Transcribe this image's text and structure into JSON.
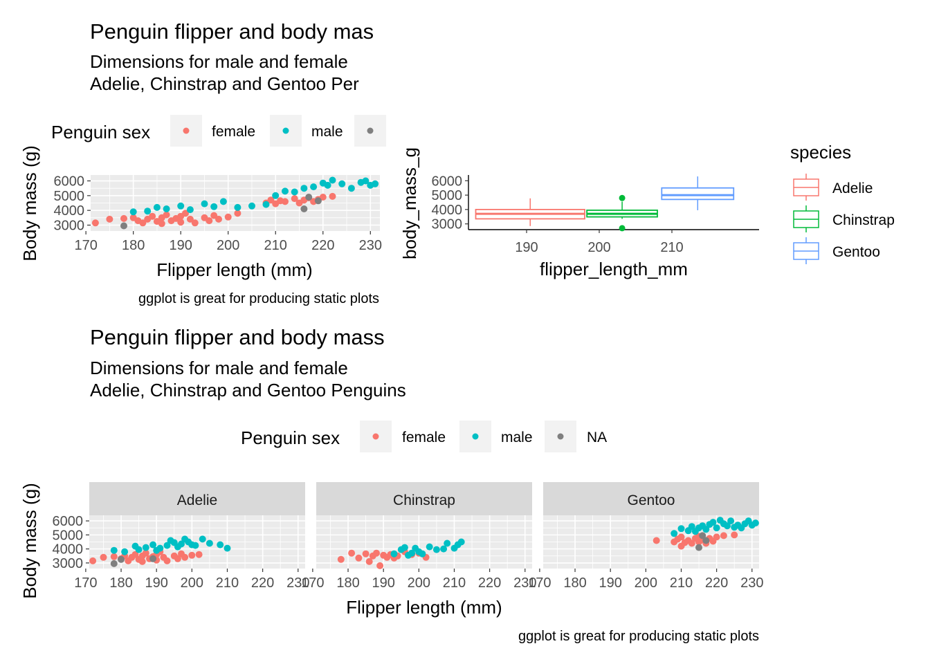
{
  "colors": {
    "female": "#F8766D",
    "male": "#00BFC4",
    "na": "#7F7F7F",
    "Adelie": "#F8766D",
    "Chinstrap": "#00BA38",
    "Gentoo": "#619CFF",
    "panel_bg": "#EBEBEB",
    "grid": "#FFFFFF",
    "strip_bg": "#D9D9D9"
  },
  "top_left": {
    "title": "Penguin flipper and body mas",
    "subtitle_line1": "Dimensions for male and female",
    "subtitle_line2": "Adelie, Chinstrap and Gentoo Per",
    "caption": "ggplot is great for producing static plots",
    "legend_title": "Penguin sex",
    "legend_labels": [
      "female",
      "male"
    ]
  },
  "top_right": {
    "legend_title": "species",
    "legend_labels": [
      "Adelie",
      "Chinstrap",
      "Gentoo"
    ]
  },
  "bottom": {
    "title": "Penguin flipper and body mass",
    "subtitle_line1": "Dimensions for male and female",
    "subtitle_line2": "Adelie, Chinstrap and Gentoo Penguins",
    "caption": "ggplot is great for producing static plots",
    "legend_title": "Penguin sex",
    "legend_labels": [
      "female",
      "male",
      "NA"
    ]
  },
  "chart_data": [
    {
      "type": "scatter",
      "xlabel": "Flipper length (mm)",
      "ylabel": "Body mass (g)",
      "xlim": [
        171,
        232
      ],
      "ylim": [
        2600,
        6400
      ],
      "xticks": [
        "170",
        "180",
        "190",
        "200",
        "210",
        "220",
        "230"
      ],
      "yticks": [
        "3000",
        "4000",
        "5000",
        "6000"
      ],
      "series": [
        {
          "name": "female",
          "points": [
            [
              172,
              3150
            ],
            [
              175,
              3400
            ],
            [
              178,
              3450
            ],
            [
              180,
              3500
            ],
            [
              181,
              3300
            ],
            [
              182,
              3150
            ],
            [
              183,
              3400
            ],
            [
              184,
              3600
            ],
            [
              185,
              3250
            ],
            [
              186,
              3100
            ],
            [
              186,
              3500
            ],
            [
              187,
              3700
            ],
            [
              188,
              3300
            ],
            [
              189,
              3450
            ],
            [
              190,
              3200
            ],
            [
              190,
              3600
            ],
            [
              191,
              3800
            ],
            [
              192,
              3400
            ],
            [
              193,
              3150
            ],
            [
              195,
              3500
            ],
            [
              196,
              3300
            ],
            [
              197,
              3650
            ],
            [
              198,
              3400
            ],
            [
              200,
              3550
            ],
            [
              202,
              3800
            ],
            [
              208,
              4500
            ],
            [
              209,
              4700
            ],
            [
              210,
              4450
            ],
            [
              211,
              4650
            ],
            [
              212,
              4600
            ],
            [
              214,
              4800
            ],
            [
              215,
              4500
            ],
            [
              216,
              4700
            ],
            [
              217,
              4850
            ],
            [
              218,
              4600
            ],
            [
              219,
              4750
            ],
            [
              220,
              4900
            ],
            [
              222,
              4950
            ]
          ]
        },
        {
          "name": "male",
          "points": [
            [
              180,
              3900
            ],
            [
              183,
              3950
            ],
            [
              185,
              4200
            ],
            [
              187,
              4100
            ],
            [
              190,
              4300
            ],
            [
              192,
              4050
            ],
            [
              195,
              4450
            ],
            [
              197,
              4250
            ],
            [
              199,
              4600
            ],
            [
              202,
              4200
            ],
            [
              205,
              4300
            ],
            [
              208,
              4400
            ],
            [
              210,
              5000
            ],
            [
              212,
              5300
            ],
            [
              214,
              5250
            ],
            [
              216,
              5500
            ],
            [
              218,
              5600
            ],
            [
              220,
              5850
            ],
            [
              221,
              5700
            ],
            [
              222,
              6050
            ],
            [
              224,
              5800
            ],
            [
              226,
              5500
            ],
            [
              228,
              5900
            ],
            [
              229,
              6000
            ],
            [
              230,
              5700
            ],
            [
              231,
              5800
            ]
          ]
        },
        {
          "name": "NA",
          "points": [
            [
              178,
              2950
            ],
            [
              216,
              4100
            ],
            [
              217,
              4900
            ],
            [
              219,
              4650
            ]
          ]
        }
      ]
    },
    {
      "type": "box",
      "xlabel": "flipper_length_mm",
      "ylabel": "body_mass_g",
      "xlim": [
        182,
        222
      ],
      "ylim": [
        2600,
        6400
      ],
      "xticks": [
        "190",
        "200",
        "210"
      ],
      "yticks": [
        "3000",
        "4000",
        "5000",
        "6000"
      ],
      "boxes": [
        {
          "name": "Adelie",
          "x_from": 183,
          "x_to": 198,
          "whisker_low": 2850,
          "q1": 3350,
          "median": 3700,
          "q3": 4000,
          "whisker_high": 4775,
          "outliers": []
        },
        {
          "name": "Chinstrap",
          "x_from": 198.3,
          "x_to": 208,
          "whisker_low": 3350,
          "q1": 3487,
          "median": 3700,
          "q3": 3950,
          "whisker_high": 4550,
          "outliers": [
            2700,
            4800
          ]
        },
        {
          "name": "Gentoo",
          "x_from": 208.6,
          "x_to": 218.5,
          "whisker_low": 3950,
          "q1": 4700,
          "median": 5000,
          "q3": 5500,
          "whisker_high": 6300,
          "outliers": []
        }
      ]
    },
    {
      "type": "scatter",
      "facets": [
        "Adelie",
        "Chinstrap",
        "Gentoo"
      ],
      "xlabel": "Flipper length (mm)",
      "ylabel": "Body mass (g)",
      "xlim": [
        171,
        232
      ],
      "ylim": [
        2600,
        6400
      ],
      "xticks": [
        "170",
        "180",
        "190",
        "200",
        "210",
        "220",
        "230"
      ],
      "yticks": [
        "3000",
        "4000",
        "5000",
        "6000"
      ],
      "panels": [
        {
          "facet": "Adelie",
          "series": [
            {
              "name": "female",
              "points": [
                [
                  172,
                  3150
                ],
                [
                  175,
                  3400
                ],
                [
                  178,
                  3450
                ],
                [
                  180,
                  3300
                ],
                [
                  181,
                  3500
                ],
                [
                  182,
                  3150
                ],
                [
                  183,
                  3400
                ],
                [
                  184,
                  3600
                ],
                [
                  185,
                  3250
                ],
                [
                  186,
                  3100
                ],
                [
                  186,
                  3500
                ],
                [
                  187,
                  3700
                ],
                [
                  188,
                  3300
                ],
                [
                  189,
                  3450
                ],
                [
                  190,
                  3200
                ],
                [
                  190,
                  3600
                ],
                [
                  191,
                  3800
                ],
                [
                  192,
                  3400
                ],
                [
                  193,
                  3150
                ],
                [
                  195,
                  3500
                ],
                [
                  196,
                  3300
                ],
                [
                  197,
                  3650
                ],
                [
                  198,
                  3400
                ],
                [
                  200,
                  3550
                ],
                [
                  202,
                  3600
                ]
              ]
            },
            {
              "name": "male",
              "points": [
                [
                  178,
                  3900
                ],
                [
                  181,
                  3800
                ],
                [
                  184,
                  4200
                ],
                [
                  185,
                  3950
                ],
                [
                  187,
                  4100
                ],
                [
                  189,
                  4300
                ],
                [
                  190,
                  3900
                ],
                [
                  191,
                  4050
                ],
                [
                  193,
                  4250
                ],
                [
                  194,
                  4600
                ],
                [
                  195,
                  4450
                ],
                [
                  196,
                  4150
                ],
                [
                  197,
                  4350
                ],
                [
                  198,
                  4700
                ],
                [
                  199,
                  4500
                ],
                [
                  200,
                  4300
                ],
                [
                  201,
                  4250
                ],
                [
                  203,
                  4700
                ],
                [
                  205,
                  4400
                ],
                [
                  208,
                  4300
                ],
                [
                  210,
                  4050
                ]
              ]
            },
            {
              "name": "NA",
              "points": [
                [
                  178,
                  2950
                ],
                [
                  180,
                  3250
                ],
                [
                  189,
                  3300
                ]
              ]
            }
          ]
        },
        {
          "facet": "Chinstrap",
          "series": [
            {
              "name": "female",
              "points": [
                [
                  178,
                  3250
                ],
                [
                  181,
                  3700
                ],
                [
                  183,
                  3350
                ],
                [
                  185,
                  3650
                ],
                [
                  186,
                  3100
                ],
                [
                  187,
                  3500
                ],
                [
                  188,
                  3700
                ],
                [
                  189,
                  2800
                ],
                [
                  190,
                  3550
                ],
                [
                  191,
                  3400
                ],
                [
                  192,
                  3600
                ],
                [
                  193,
                  3350
                ],
                [
                  194,
                  3500
                ],
                [
                  196,
                  3800
                ],
                [
                  198,
                  3600
                ],
                [
                  200,
                  3700
                ],
                [
                  202,
                  3400
                ]
              ]
            },
            {
              "name": "male",
              "points": [
                [
                  193,
                  3650
                ],
                [
                  195,
                  3950
                ],
                [
                  196,
                  4100
                ],
                [
                  197,
                  3550
                ],
                [
                  198,
                  3700
                ],
                [
                  199,
                  4050
                ],
                [
                  200,
                  3800
                ],
                [
                  201,
                  3650
                ],
                [
                  203,
                  4150
                ],
                [
                  205,
                  3950
                ],
                [
                  207,
                  4000
                ],
                [
                  208,
                  4400
                ],
                [
                  210,
                  4050
                ],
                [
                  211,
                  4300
                ],
                [
                  212,
                  4500
                ]
              ]
            }
          ]
        },
        {
          "facet": "Gentoo",
          "series": [
            {
              "name": "female",
              "points": [
                [
                  203,
                  4600
                ],
                [
                  208,
                  4500
                ],
                [
                  209,
                  4700
                ],
                [
                  210,
                  4200
                ],
                [
                  210,
                  4850
                ],
                [
                  211,
                  4450
                ],
                [
                  212,
                  4600
                ],
                [
                  213,
                  4400
                ],
                [
                  214,
                  4750
                ],
                [
                  215,
                  4500
                ],
                [
                  215,
                  4900
                ],
                [
                  216,
                  4650
                ],
                [
                  217,
                  4400
                ],
                [
                  218,
                  4750
                ],
                [
                  219,
                  4550
                ],
                [
                  220,
                  4850
                ],
                [
                  222,
                  4950
                ],
                [
                  225,
                  5000
                ]
              ]
            },
            {
              "name": "male",
              "points": [
                [
                  208,
                  5100
                ],
                [
                  210,
                  5450
                ],
                [
                  212,
                  5300
                ],
                [
                  213,
                  5600
                ],
                [
                  214,
                  5250
                ],
                [
                  215,
                  5500
                ],
                [
                  216,
                  5650
                ],
                [
                  217,
                  5400
                ],
                [
                  218,
                  5750
                ],
                [
                  219,
                  5900
                ],
                [
                  220,
                  5500
                ],
                [
                  221,
                  6050
                ],
                [
                  222,
                  5800
                ],
                [
                  223,
                  5650
                ],
                [
                  224,
                  6000
                ],
                [
                  225,
                  5550
                ],
                [
                  226,
                  5700
                ],
                [
                  227,
                  5500
                ],
                [
                  228,
                  5800
                ],
                [
                  229,
                  6000
                ],
                [
                  230,
                  5700
                ],
                [
                  231,
                  5850
                ]
              ]
            },
            {
              "name": "NA",
              "points": [
                [
                  215,
                  4100
                ],
                [
                  216,
                  4950
                ],
                [
                  217,
                  4600
                ]
              ]
            }
          ]
        }
      ]
    }
  ]
}
